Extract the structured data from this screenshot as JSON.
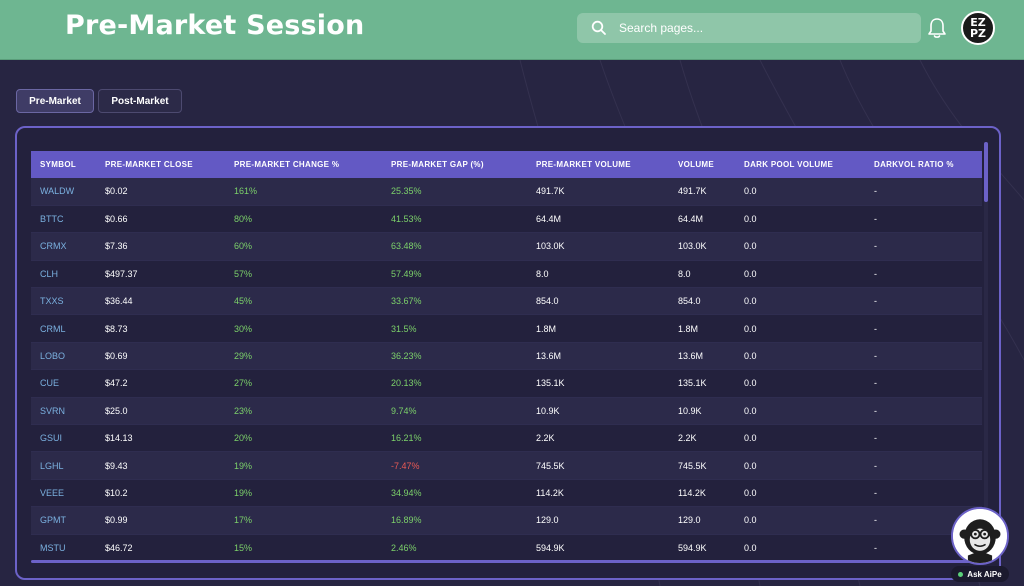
{
  "header": {
    "title": "Pre-Market Session",
    "search_placeholder": "Search pages...",
    "avatar_text_top": "EZ",
    "avatar_text_bottom": "PZ"
  },
  "tabs": [
    {
      "label": "Pre-Market",
      "active": true
    },
    {
      "label": "Post-Market",
      "active": false
    }
  ],
  "table": {
    "columns": [
      "SYMBOL",
      "PRE-MARKET CLOSE",
      "PRE-MARKET CHANGE %",
      "PRE-MARKET GAP (%)",
      "PRE-MARKET VOLUME",
      "VOLUME",
      "DARK POOL VOLUME",
      "DARKVOL RATIO %"
    ],
    "rows": [
      [
        "WALDW",
        "$0.02",
        "161%",
        "25.35%",
        "491.7K",
        "491.7K",
        "0.0",
        "-"
      ],
      [
        "BTTC",
        "$0.66",
        "80%",
        "41.53%",
        "64.4M",
        "64.4M",
        "0.0",
        "-"
      ],
      [
        "CRMX",
        "$7.36",
        "60%",
        "63.48%",
        "103.0K",
        "103.0K",
        "0.0",
        "-"
      ],
      [
        "CLH",
        "$497.37",
        "57%",
        "57.49%",
        "8.0",
        "8.0",
        "0.0",
        "-"
      ],
      [
        "TXXS",
        "$36.44",
        "45%",
        "33.67%",
        "854.0",
        "854.0",
        "0.0",
        "-"
      ],
      [
        "CRML",
        "$8.73",
        "30%",
        "31.5%",
        "1.8M",
        "1.8M",
        "0.0",
        "-"
      ],
      [
        "LOBO",
        "$0.69",
        "29%",
        "36.23%",
        "13.6M",
        "13.6M",
        "0.0",
        "-"
      ],
      [
        "CUE",
        "$47.2",
        "27%",
        "20.13%",
        "135.1K",
        "135.1K",
        "0.0",
        "-"
      ],
      [
        "SVRN",
        "$25.0",
        "23%",
        "9.74%",
        "10.9K",
        "10.9K",
        "0.0",
        "-"
      ],
      [
        "GSUI",
        "$14.13",
        "20%",
        "16.21%",
        "2.2K",
        "2.2K",
        "0.0",
        "-"
      ],
      [
        "LGHL",
        "$9.43",
        "19%",
        "-7.47%",
        "745.5K",
        "745.5K",
        "0.0",
        "-"
      ],
      [
        "VEEE",
        "$10.2",
        "19%",
        "34.94%",
        "114.2K",
        "114.2K",
        "0.0",
        "-"
      ],
      [
        "GPMT",
        "$0.99",
        "17%",
        "16.89%",
        "129.0",
        "129.0",
        "0.0",
        "-"
      ],
      [
        "MSTU",
        "$46.72",
        "15%",
        "2.46%",
        "594.9K",
        "594.9K",
        "0.0",
        "-"
      ]
    ]
  },
  "assistant": {
    "label": "Ask AiPe"
  },
  "colors": {
    "header_bg": "#6eb691",
    "page_bg": "#272542",
    "accent": "#6359c4",
    "positive": "#7cd16a",
    "negative": "#ea5a55",
    "symbol": "#7bb1e0"
  }
}
